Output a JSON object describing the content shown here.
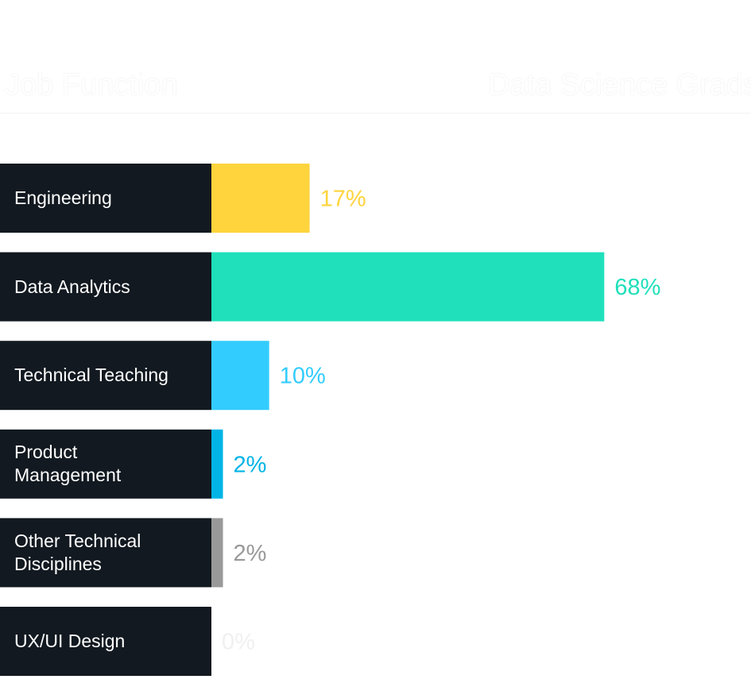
{
  "header": {
    "left_title": "Job Function",
    "right_title": "Data Science Grads"
  },
  "chart_data": {
    "type": "bar",
    "orientation": "horizontal",
    "categories": [
      "Engineering",
      "Data Analytics",
      "Technical Teaching",
      "Product Management",
      "Other Technical Disciplines",
      "UX/UI Design"
    ],
    "values": [
      17,
      68,
      10,
      2,
      2,
      0
    ],
    "value_labels": [
      "17%",
      "68%",
      "10%",
      "2%",
      "2%",
      "0%"
    ],
    "colors": [
      "#ffd43d",
      "#1fe0bb",
      "#33ccff",
      "#00b4e6",
      "#999999",
      "#f0f0f0"
    ],
    "label_box_color": "#121920",
    "xlim": [
      0,
      100
    ],
    "title": "",
    "xlabel": "",
    "ylabel": ""
  }
}
